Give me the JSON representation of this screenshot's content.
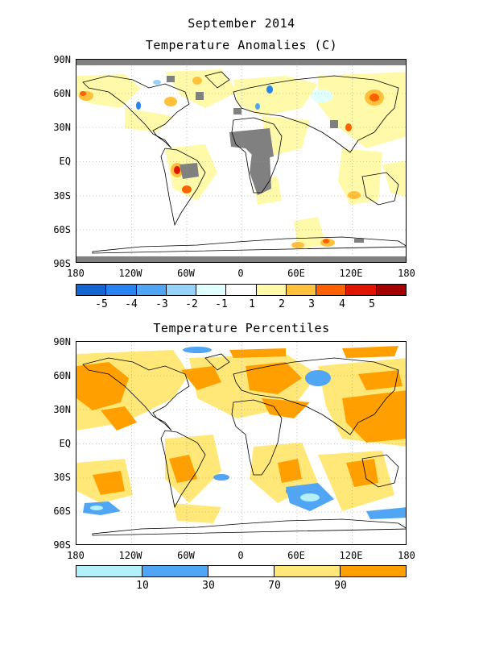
{
  "header": {
    "date_line": "September 2014",
    "anomaly_title": "Temperature Anomalies (C)",
    "percentile_title": "Temperature Percentiles"
  },
  "axes": {
    "lat_labels": [
      "90N",
      "60N",
      "30N",
      "EQ",
      "30S",
      "60S",
      "90S"
    ],
    "lon_labels": [
      "180",
      "120W",
      "60W",
      "0",
      "60E",
      "120E",
      "180"
    ]
  },
  "anomaly_colorbar": {
    "labels": [
      "-5",
      "-4",
      "-3",
      "-2",
      "-1",
      "1",
      "2",
      "3",
      "4",
      "5"
    ],
    "colors": [
      "#1464d2",
      "#2882f0",
      "#50a5f5",
      "#96d2fa",
      "#e1ffff",
      "#ffffff",
      "#fffaaa",
      "#ffc03c",
      "#ff6000",
      "#e11400",
      "#a50000"
    ]
  },
  "percentile_colorbar": {
    "labels": [
      "10",
      "30",
      "70",
      "90"
    ],
    "colors": [
      "#b4f0fa",
      "#50a5f5",
      "#ffffff",
      "#ffe878",
      "#ffa000"
    ]
  },
  "legend_colors": {
    "missing": "#808080",
    "land_outline": "#000000",
    "grid": "#999999"
  }
}
